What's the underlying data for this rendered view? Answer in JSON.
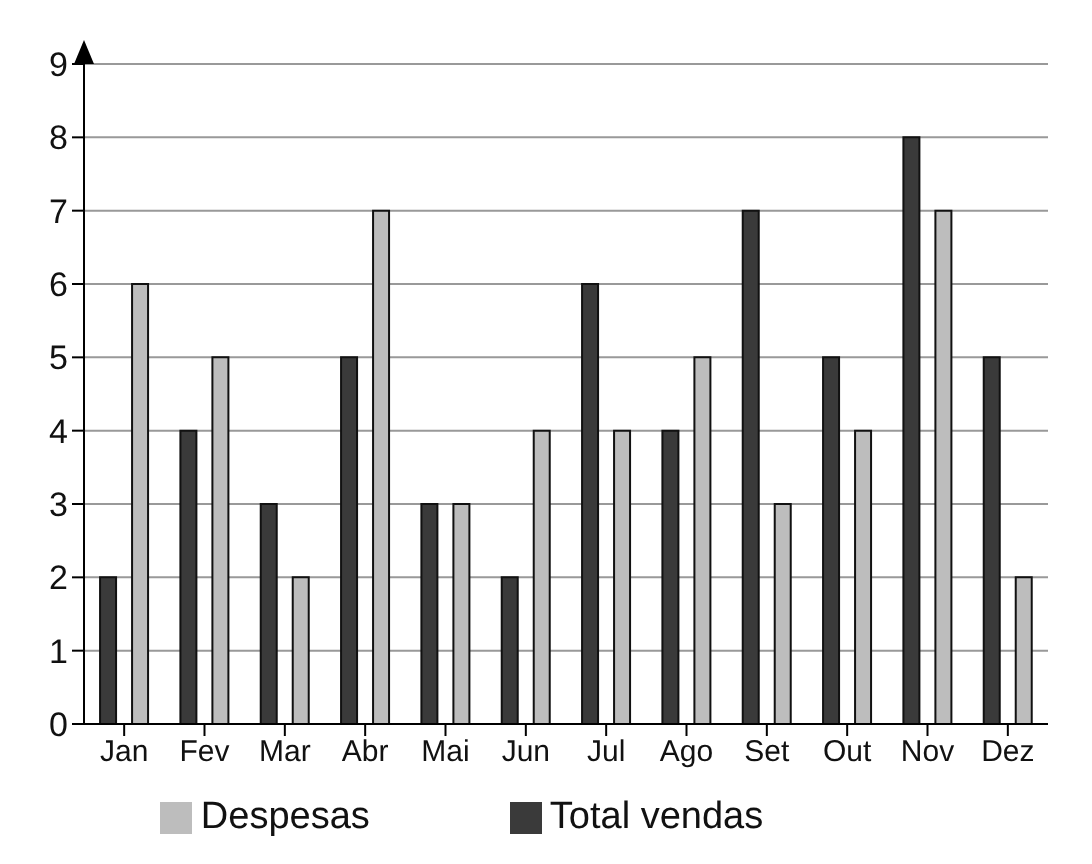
{
  "chart_data": {
    "type": "bar",
    "categories": [
      "Jan",
      "Fev",
      "Mar",
      "Abr",
      "Mai",
      "Jun",
      "Jul",
      "Ago",
      "Set",
      "Out",
      "Nov",
      "Dez"
    ],
    "series": [
      {
        "name": "Total vendas",
        "color": "#3a3a3a",
        "values": [
          2,
          4,
          3,
          5,
          3,
          2,
          6,
          4,
          7,
          5,
          8,
          5
        ]
      },
      {
        "name": "Despesas",
        "color": "#bdbdbd",
        "values": [
          6,
          5,
          2,
          7,
          3,
          4,
          4,
          5,
          3,
          4,
          7,
          2
        ]
      }
    ],
    "ylim": [
      0,
      9
    ],
    "yticks": [
      0,
      1,
      2,
      3,
      4,
      5,
      6,
      7,
      8,
      9
    ],
    "grid": "y",
    "legend": "bottom"
  }
}
